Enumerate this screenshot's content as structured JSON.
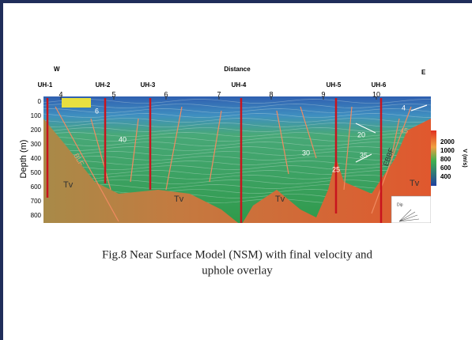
{
  "header": {
    "west": "W",
    "distance": "Distance",
    "east": "E"
  },
  "upholes": [
    "UH-1",
    "UH-2",
    "UH-3",
    "UH-4",
    "UH-5",
    "UH-6"
  ],
  "distance_ticks": [
    "4",
    "5",
    "6",
    "7",
    "8",
    "9",
    "10"
  ],
  "depth_axis": {
    "label": "Depth (m)",
    "ticks": [
      "0",
      "100",
      "200",
      "300",
      "400",
      "500",
      "600",
      "700",
      "800"
    ]
  },
  "velocity_scale": {
    "label": "V (m/s)",
    "ticks": [
      "2000",
      "1000",
      "800",
      "600",
      "400"
    ]
  },
  "annotations": [
    "6",
    "40",
    "BLF",
    "Tv",
    "Tv",
    "Tv",
    "Tv",
    "30",
    "20",
    "25",
    "35",
    "45",
    "4",
    "EBBF",
    "Dip"
  ],
  "caption": [
    "Fig.8   Near Surface Model (NSM) with final velocity and",
    "uphole overlay"
  ]
}
